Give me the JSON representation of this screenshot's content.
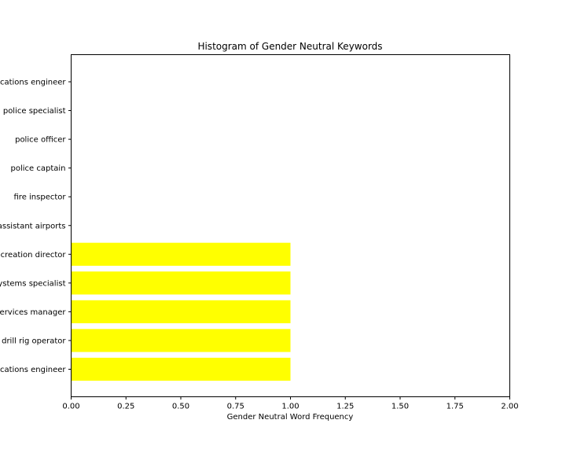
{
  "chart_data": {
    "type": "bar",
    "orientation": "horizontal",
    "title": "Histogram of Gender Neutral Keywords",
    "xlabel": "Gender Neutral Word Frequency",
    "ylabel": "",
    "xlim": [
      0,
      2
    ],
    "xticks": [
      0,
      0.25,
      0.5,
      0.75,
      1.0,
      1.25,
      1.5,
      1.75,
      2.0
    ],
    "xtick_labels": [
      "0.00",
      "0.25",
      "0.50",
      "0.75",
      "1.00",
      "1.25",
      "1.50",
      "1.75",
      "2.00"
    ],
    "categories": [
      "cations engineer",
      "drill rig operator",
      "ervices manager",
      "ystems specialist",
      "creation director",
      "assistant airports",
      "fire inspector",
      "police captain",
      "police officer",
      "police specialist",
      "cations engineer"
    ],
    "values": [
      1,
      1,
      1,
      1,
      1,
      0,
      0,
      0,
      0,
      0,
      0
    ],
    "bar_color": "#ffff00",
    "grid": false,
    "legend": "none"
  }
}
